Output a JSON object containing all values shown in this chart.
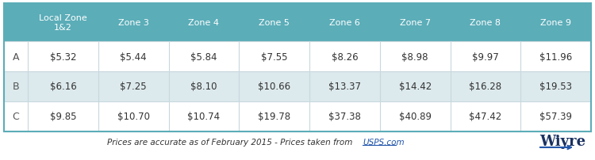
{
  "col_headers": [
    "Local Zone\n1&2",
    "Zone 3",
    "Zone 4",
    "Zone 5",
    "Zone 6",
    "Zone 7",
    "Zone 8",
    "Zone 9"
  ],
  "row_labels": [
    "A",
    "B",
    "C"
  ],
  "rows": [
    [
      "$5.32",
      "$5.44",
      "$5.84",
      "$7.55",
      "$8.26",
      "$8.98",
      "$9.97",
      "$11.96"
    ],
    [
      "$6.16",
      "$7.25",
      "$8.10",
      "$10.66",
      "$13.37",
      "$14.42",
      "$16.28",
      "$19.53"
    ],
    [
      "$9.85",
      "$10.70",
      "$10.74",
      "$19.78",
      "$37.38",
      "$40.89",
      "$47.42",
      "$57.39"
    ]
  ],
  "header_bg": "#5BADB8",
  "header_text": "#ffffff",
  "row_bg_even": "#ffffff",
  "row_bg_odd": "#dce9ed",
  "row_text": "#333333",
  "row_label_text": "#555555",
  "footer_text": "Prices are accurate as of February 2015 - Prices taken from ",
  "footer_link": "USPS.com",
  "footer_brand": "Wiyre",
  "outer_border": "#5BADB8",
  "cell_border": "#c8d8dc",
  "fig_bg": "#ffffff",
  "footer_text_color": "#333333",
  "footer_link_color": "#2255aa",
  "footer_brand_color": "#1a3060",
  "arrow_color": "#2255aa"
}
